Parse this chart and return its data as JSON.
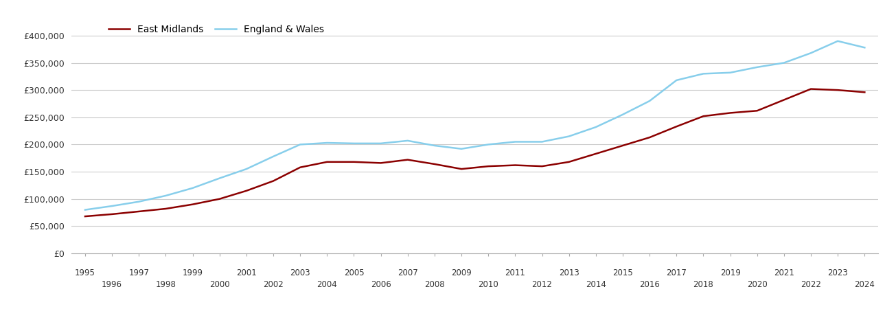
{
  "years": [
    1995,
    1996,
    1997,
    1998,
    1999,
    2000,
    2001,
    2002,
    2003,
    2004,
    2005,
    2006,
    2007,
    2008,
    2009,
    2010,
    2011,
    2012,
    2013,
    2014,
    2015,
    2016,
    2017,
    2018,
    2019,
    2020,
    2021,
    2022,
    2023,
    2024
  ],
  "east_midlands": [
    68000,
    72000,
    77000,
    82000,
    90000,
    100000,
    115000,
    133000,
    158000,
    168000,
    168000,
    166000,
    172000,
    164000,
    155000,
    160000,
    162000,
    160000,
    168000,
    183000,
    198000,
    213000,
    233000,
    252000,
    258000,
    262000,
    282000,
    302000,
    300000,
    296000
  ],
  "england_wales": [
    80000,
    87000,
    95000,
    106000,
    120000,
    138000,
    155000,
    178000,
    200000,
    203000,
    202000,
    202000,
    207000,
    198000,
    192000,
    200000,
    205000,
    205000,
    215000,
    232000,
    255000,
    280000,
    318000,
    330000,
    332000,
    342000,
    350000,
    368000,
    390000,
    378000
  ],
  "east_midlands_color": "#8B0000",
  "england_wales_color": "#87CEEB",
  "east_midlands_label": "East Midlands",
  "england_wales_label": "England & Wales",
  "ylim": [
    0,
    420000
  ],
  "yticks": [
    0,
    50000,
    100000,
    150000,
    200000,
    250000,
    300000,
    350000,
    400000
  ],
  "background_color": "#ffffff",
  "grid_color": "#cccccc",
  "line_width": 1.8
}
